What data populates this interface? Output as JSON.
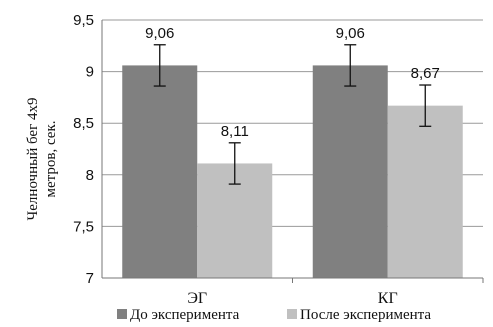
{
  "chart_data": {
    "type": "bar",
    "categories": [
      "ЭГ",
      "КГ"
    ],
    "series": [
      {
        "name": "До эксперимента",
        "values": [
          9.06,
          9.06
        ],
        "labels": [
          "9,06",
          "9,06"
        ],
        "error": [
          0.2,
          0.2
        ],
        "color": "#808080"
      },
      {
        "name": "После эксперимента",
        "values": [
          8.11,
          8.67
        ],
        "labels": [
          "8,11",
          "8,67"
        ],
        "error": [
          0.2,
          0.2
        ],
        "color": "#c0c0c0"
      }
    ],
    "ylabel_lines": [
      "Челночный бег 4х9",
      "метров, сек."
    ],
    "ylim": [
      7,
      9.5
    ],
    "yticks": [
      {
        "value": 7,
        "label": "7"
      },
      {
        "value": 7.5,
        "label": "7,5"
      },
      {
        "value": 8,
        "label": "8"
      },
      {
        "value": 8.5,
        "label": "8,5"
      },
      {
        "value": 9,
        "label": "9"
      },
      {
        "value": 9.5,
        "label": "9,5"
      }
    ],
    "grid": true,
    "legend_position": "bottom"
  }
}
